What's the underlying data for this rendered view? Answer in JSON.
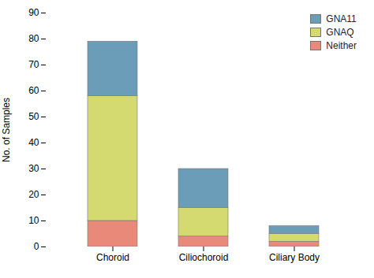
{
  "chart_data": {
    "type": "bar",
    "stacked": true,
    "categories": [
      "Choroid",
      "Ciliochoroid",
      "Ciliary Body"
    ],
    "series": [
      {
        "name": "Neither",
        "color": "#E8897A",
        "values": [
          10,
          4,
          2
        ]
      },
      {
        "name": "GNAQ",
        "color": "#D4D970",
        "values": [
          48,
          11,
          3
        ]
      },
      {
        "name": "GNA11",
        "color": "#6B9DB8",
        "values": [
          21,
          15,
          3
        ]
      }
    ],
    "ylabel": "No. of Samples",
    "ylim": [
      0,
      90
    ],
    "yticks": [
      0,
      10,
      20,
      30,
      40,
      50,
      60,
      70,
      80,
      90
    ],
    "grid": false,
    "legend": "upper right"
  }
}
